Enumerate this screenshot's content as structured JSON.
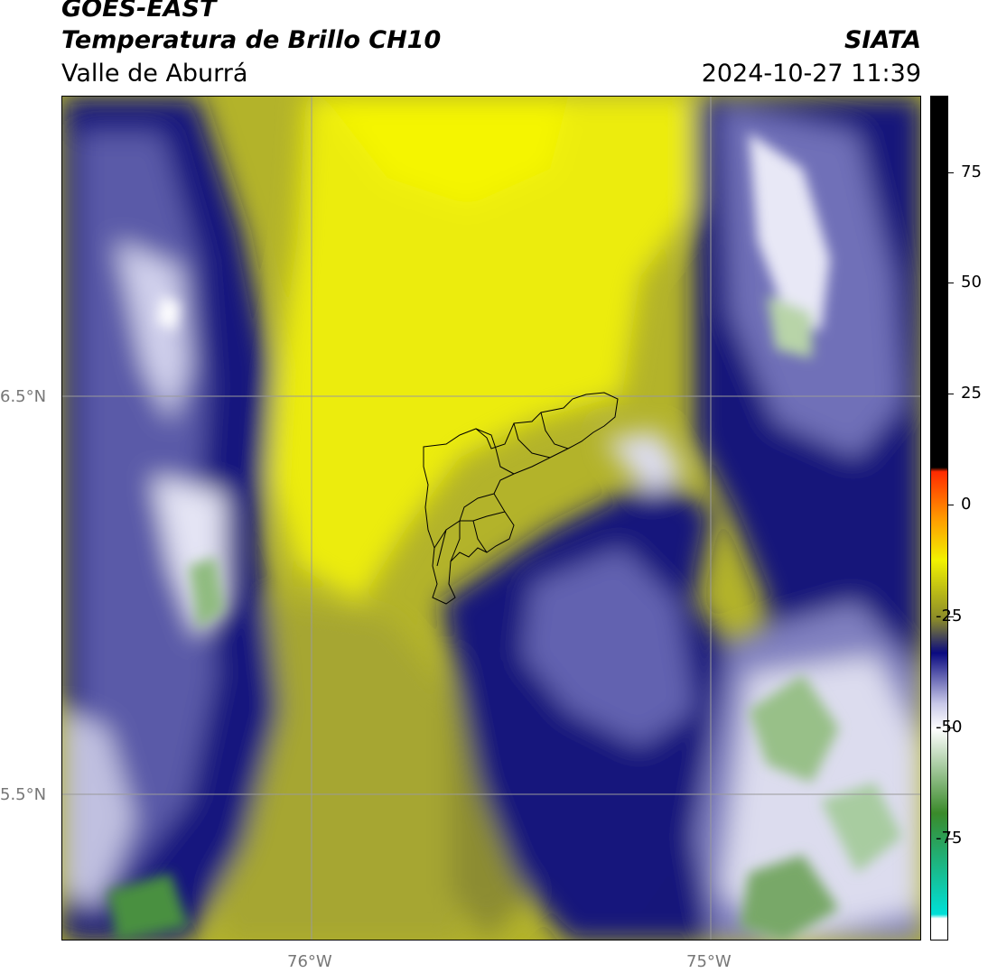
{
  "header": {
    "satellite": "GOES-EAST",
    "product": "Temperatura de Brillo CH10",
    "region": "Valle de Aburrá",
    "organization": "SIATA",
    "timestamp": "2024-10-27 11:39"
  },
  "map": {
    "lat_labels": [
      "6.5°N",
      "5.5°N"
    ],
    "lon_labels": [
      "76°W",
      "75°W"
    ]
  },
  "colorbar": {
    "labels": [
      "75",
      "50",
      "25",
      "0",
      "-25",
      "-50",
      "-75"
    ],
    "colors": {
      "black": "#000000",
      "red": "#ff2a00",
      "orange": "#ff9900",
      "yellow": "#f2f200",
      "olive": "#8a8a2a",
      "navy": "#0a0a80",
      "lavender": "#c8c8e8",
      "white": "#ffffff",
      "green": "#3a8a2a",
      "cyan": "#00e0d8"
    }
  }
}
